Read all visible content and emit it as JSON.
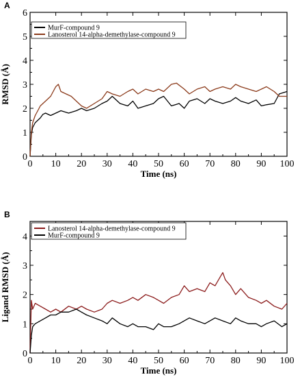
{
  "chart_data": [
    {
      "panel": "A",
      "type": "line",
      "xlabel": "Time (ns)",
      "ylabel": "RMSD (Å)",
      "xlim": [
        0,
        100
      ],
      "ylim": [
        0,
        6
      ],
      "xticks": [
        0,
        10,
        20,
        30,
        40,
        50,
        60,
        70,
        80,
        90,
        100
      ],
      "yticks": [
        0,
        1,
        2,
        3,
        4,
        5,
        6
      ],
      "legend_position": "top-left",
      "series": [
        {
          "name": "MurF-compound 9",
          "color": "#000000",
          "x": [
            0,
            0.5,
            1,
            2,
            3,
            4,
            5,
            6,
            8,
            10,
            12,
            15,
            18,
            20,
            22,
            25,
            28,
            30,
            32,
            35,
            38,
            40,
            42,
            45,
            48,
            50,
            52,
            55,
            58,
            60,
            62,
            65,
            68,
            70,
            72,
            75,
            78,
            80,
            82,
            85,
            88,
            90,
            92,
            95,
            97,
            100
          ],
          "values": [
            0,
            0.9,
            1.2,
            1.4,
            1.5,
            1.6,
            1.75,
            1.8,
            1.7,
            1.8,
            1.9,
            1.8,
            1.9,
            2.0,
            1.9,
            2.0,
            2.2,
            2.3,
            2.5,
            2.2,
            2.1,
            2.3,
            2.0,
            2.1,
            2.2,
            2.4,
            2.5,
            2.1,
            2.2,
            2.0,
            2.3,
            2.4,
            2.2,
            2.4,
            2.3,
            2.2,
            2.3,
            2.45,
            2.3,
            2.2,
            2.35,
            2.1,
            2.15,
            2.2,
            2.6,
            2.7
          ]
        },
        {
          "name": "Lanosterol 14-alpha-demethylase-compound 9",
          "color": "#8B3A1A",
          "x": [
            0,
            0.5,
            1,
            2,
            3,
            4,
            5,
            6,
            8,
            10,
            11,
            12,
            14,
            16,
            18,
            20,
            22,
            25,
            28,
            30,
            32,
            35,
            38,
            40,
            42,
            45,
            48,
            50,
            52,
            55,
            57,
            60,
            62,
            65,
            68,
            70,
            72,
            75,
            78,
            80,
            82,
            85,
            88,
            90,
            92,
            95,
            97,
            100
          ],
          "values": [
            0,
            1.0,
            1.4,
            1.7,
            1.9,
            2.1,
            2.2,
            2.3,
            2.5,
            2.9,
            3.0,
            2.7,
            2.6,
            2.5,
            2.3,
            2.1,
            2.0,
            2.2,
            2.4,
            2.7,
            2.6,
            2.5,
            2.7,
            2.8,
            2.6,
            2.8,
            2.7,
            2.8,
            2.7,
            3.0,
            3.05,
            2.8,
            2.6,
            2.8,
            2.9,
            2.7,
            2.8,
            2.9,
            2.8,
            3.0,
            2.9,
            2.8,
            2.7,
            2.8,
            2.9,
            2.7,
            2.5,
            2.5
          ]
        }
      ]
    },
    {
      "panel": "B",
      "type": "line",
      "xlabel": "Time (ns)",
      "ylabel": "Ligand RMSD (Å)",
      "xlim": [
        0,
        100
      ],
      "ylim": [
        0,
        4.5
      ],
      "xticks": [
        0,
        10,
        20,
        30,
        40,
        50,
        60,
        70,
        80,
        90,
        100
      ],
      "yticks": [
        0,
        1,
        2,
        3,
        4
      ],
      "legend_position": "top-left",
      "series": [
        {
          "name": "Lanosterol 14-alpha-demethylase-compound 9",
          "color": "#8B1A1A",
          "x": [
            0,
            0.5,
            1,
            2,
            4,
            6,
            8,
            10,
            12,
            15,
            18,
            20,
            22,
            25,
            28,
            30,
            32,
            35,
            38,
            40,
            42,
            45,
            48,
            50,
            52,
            55,
            58,
            60,
            62,
            65,
            68,
            70,
            72,
            74,
            75,
            76,
            78,
            80,
            82,
            85,
            88,
            90,
            92,
            95,
            98,
            100
          ],
          "values": [
            0,
            1.8,
            1.5,
            1.7,
            1.6,
            1.5,
            1.4,
            1.5,
            1.4,
            1.6,
            1.5,
            1.6,
            1.5,
            1.4,
            1.5,
            1.7,
            1.8,
            1.7,
            1.8,
            1.9,
            1.8,
            2.0,
            1.9,
            1.8,
            1.7,
            1.9,
            2.0,
            2.3,
            2.1,
            2.2,
            2.1,
            2.4,
            2.3,
            2.6,
            2.75,
            2.5,
            2.3,
            2.0,
            2.2,
            1.9,
            1.8,
            1.7,
            1.8,
            1.6,
            1.5,
            1.7
          ]
        },
        {
          "name": "MurF-compound 9",
          "color": "#000000",
          "x": [
            0,
            0.5,
            1,
            2,
            4,
            6,
            8,
            10,
            12,
            15,
            18,
            20,
            22,
            25,
            28,
            30,
            32,
            35,
            38,
            40,
            42,
            45,
            48,
            50,
            52,
            55,
            58,
            60,
            62,
            65,
            68,
            70,
            72,
            75,
            78,
            80,
            82,
            85,
            88,
            90,
            92,
            95,
            98,
            100
          ],
          "values": [
            0,
            0.6,
            0.9,
            1.0,
            1.1,
            1.2,
            1.3,
            1.3,
            1.4,
            1.4,
            1.5,
            1.4,
            1.3,
            1.2,
            1.1,
            1.0,
            1.2,
            1.0,
            0.9,
            1.0,
            0.9,
            0.9,
            0.8,
            1.0,
            0.9,
            0.9,
            1.0,
            1.1,
            1.2,
            1.1,
            1.0,
            1.1,
            1.2,
            1.1,
            1.0,
            1.2,
            1.1,
            1.0,
            1.0,
            0.9,
            1.0,
            1.1,
            0.9,
            1.0
          ]
        }
      ]
    }
  ]
}
